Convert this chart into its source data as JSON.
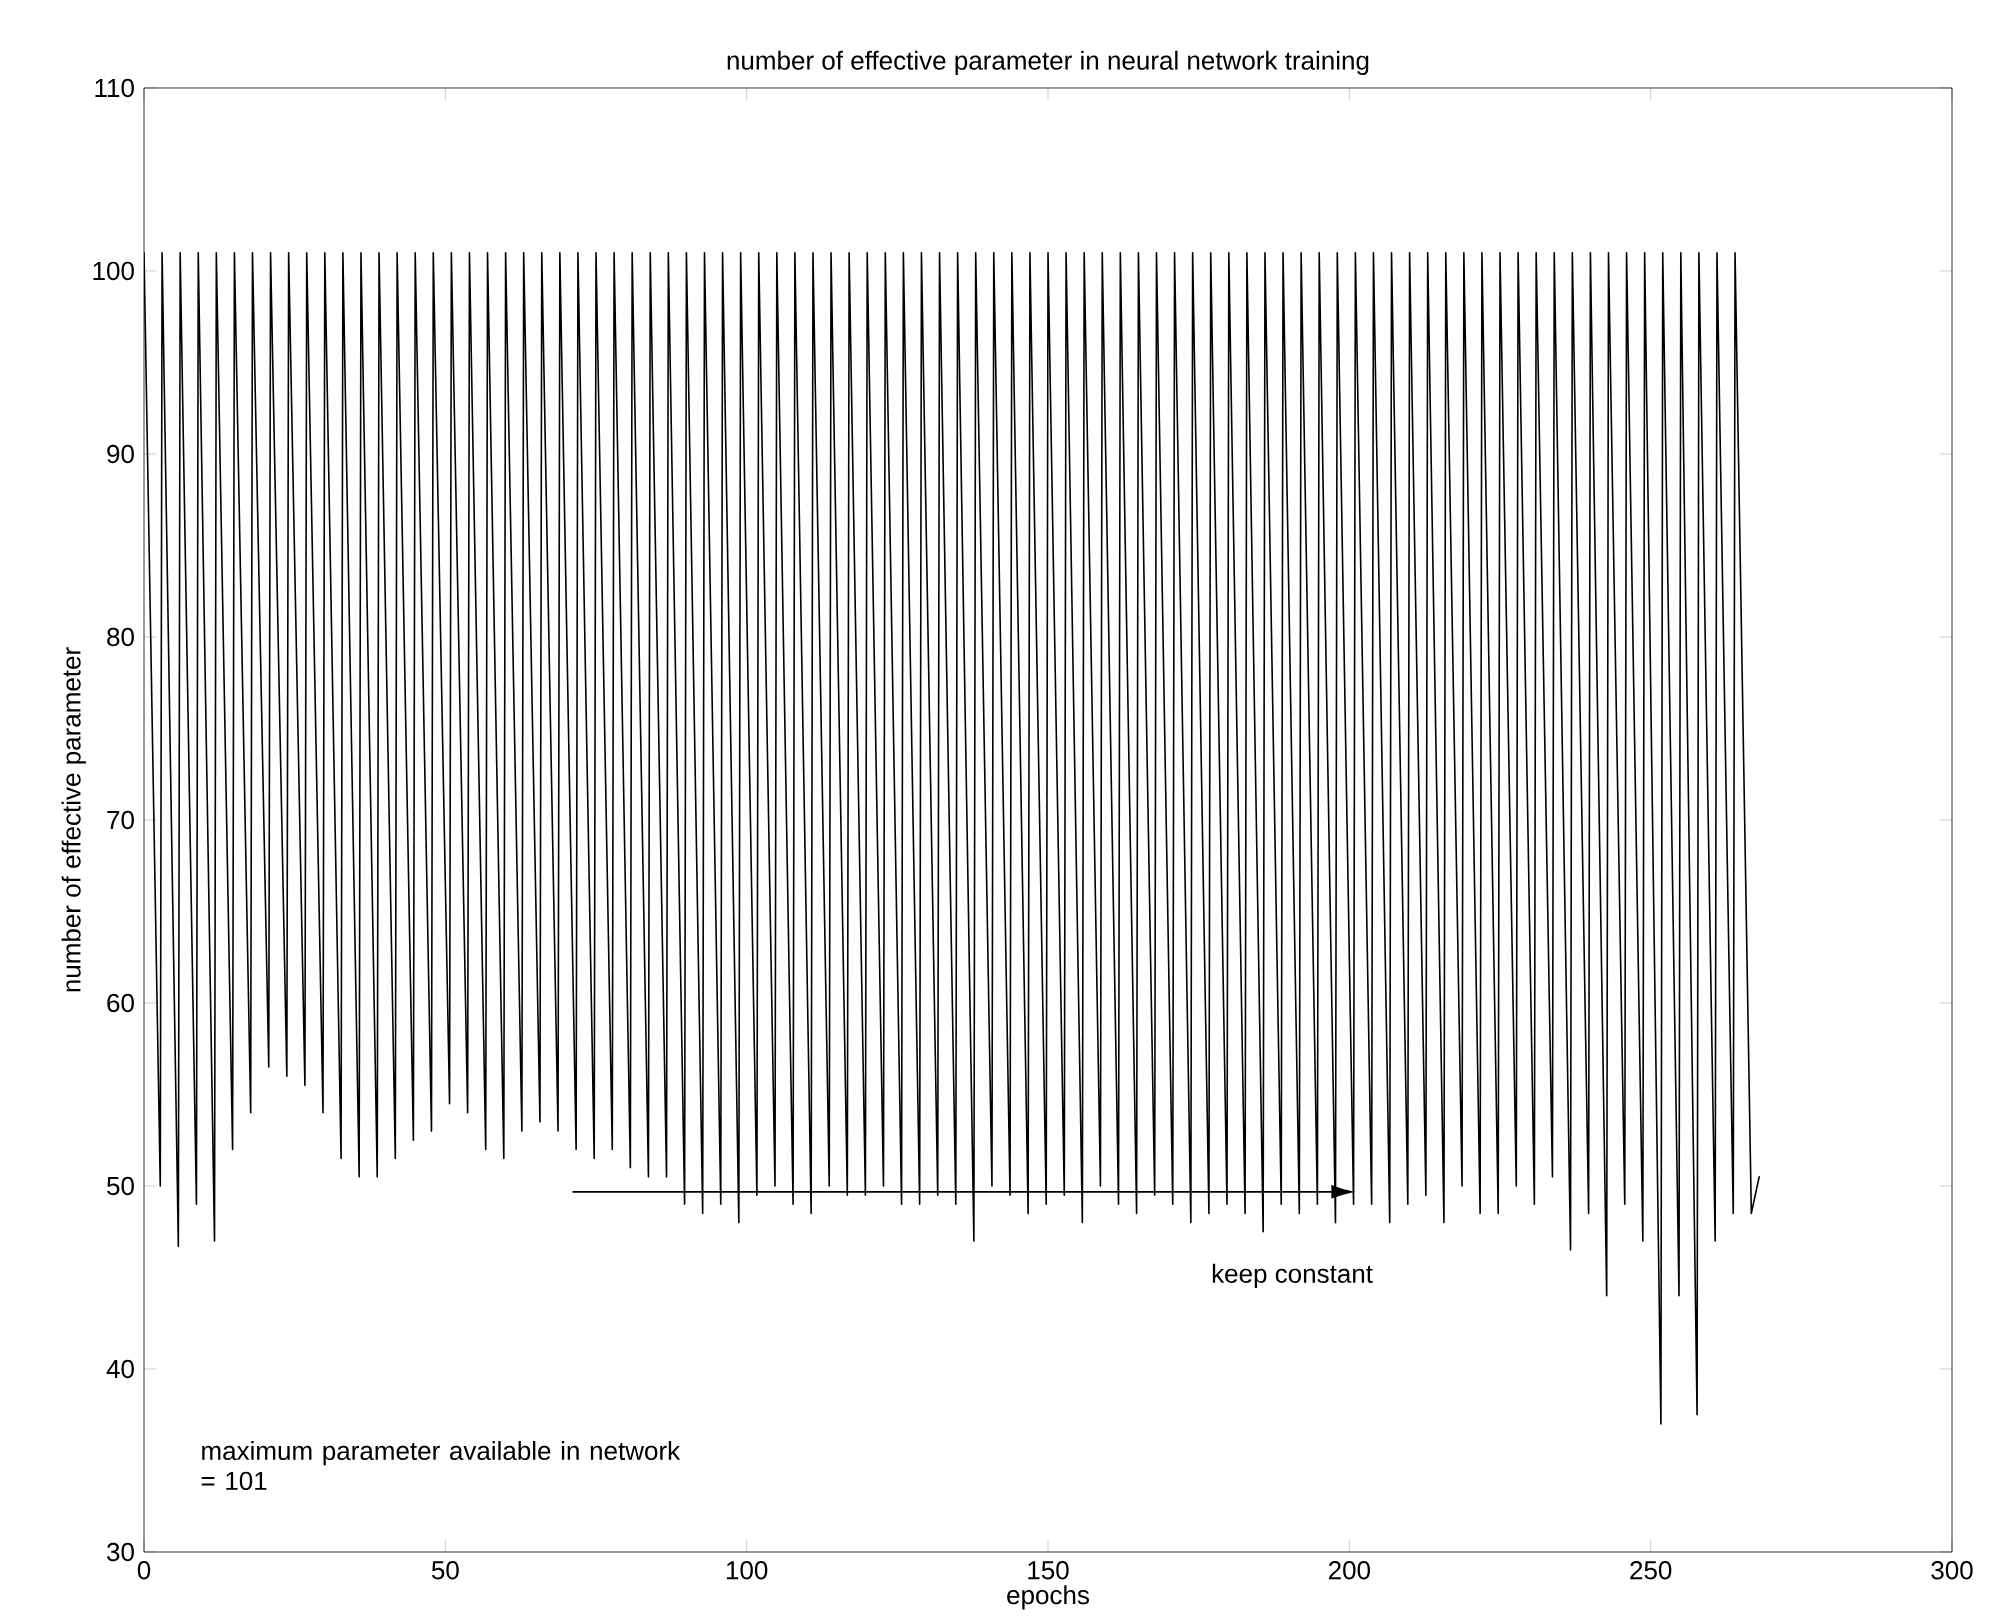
{
  "chart_data": {
    "type": "line",
    "title": "number of effective parameter in neural network training",
    "xlabel": "epochs",
    "ylabel": "number of effective parameter",
    "xlim": [
      0,
      300
    ],
    "ylim": [
      30,
      110
    ],
    "xticks": [
      0,
      50,
      100,
      150,
      200,
      250,
      300
    ],
    "yticks": [
      30,
      40,
      50,
      60,
      70,
      80,
      90,
      100,
      110
    ],
    "annotations": [
      "keep constant",
      "maximum parameter available in network = 101"
    ],
    "series": [
      {
        "color": "#000000",
        "x": [
          0,
          2.7,
          3,
          5.7,
          6,
          8.7,
          9,
          11.7,
          12,
          14.7,
          15,
          17.7,
          18,
          20.7,
          21,
          23.7,
          24,
          26.7,
          27,
          29.7,
          30,
          32.7,
          33,
          35.7,
          36,
          38.7,
          39,
          41.7,
          42,
          44.7,
          45,
          47.7,
          48,
          50.7,
          51,
          53.7,
          54,
          56.7,
          57,
          59.7,
          60,
          62.7,
          63,
          65.7,
          66,
          68.7,
          69,
          71.7,
          72,
          74.7,
          75,
          77.7,
          78,
          80.7,
          81,
          83.7,
          84,
          86.7,
          87,
          89.7,
          90,
          92.7,
          93,
          95.7,
          96,
          98.7,
          99,
          101.7,
          102,
          104.7,
          105,
          107.7,
          108,
          110.7,
          111,
          113.7,
          114,
          116.7,
          117,
          119.7,
          120,
          122.7,
          123,
          125.7,
          126,
          128.7,
          129,
          131.7,
          132,
          134.7,
          135,
          137.7,
          138,
          140.7,
          141,
          143.7,
          144,
          146.7,
          147,
          149.7,
          150,
          152.7,
          153,
          155.7,
          156,
          158.7,
          159,
          161.7,
          162,
          164.7,
          165,
          167.7,
          168,
          170.7,
          171,
          173.7,
          174,
          176.7,
          177,
          179.7,
          180,
          182.7,
          183,
          185.7,
          186,
          188.7,
          189,
          191.7,
          192,
          194.7,
          195,
          197.7,
          198,
          200.7,
          201,
          203.7,
          204,
          206.7,
          207,
          209.7,
          210,
          212.7,
          213,
          215.7,
          216,
          218.7,
          219,
          221.7,
          222,
          224.7,
          225,
          227.7,
          228,
          230.7,
          231,
          233.7,
          234,
          236.7,
          237,
          239.7,
          240,
          242.7,
          243,
          245.7,
          246,
          248.7,
          249,
          251.7,
          252,
          254.7,
          255,
          257.7,
          258,
          260.7,
          261,
          263.7,
          264,
          266.7,
          268
        ],
        "values": [
          101,
          50,
          101,
          46.7,
          101,
          49,
          101,
          47,
          101,
          52,
          101,
          54,
          101,
          56.5,
          101,
          56,
          101,
          55.5,
          101,
          54,
          101,
          51.5,
          101,
          50.5,
          101,
          50.5,
          101,
          51.5,
          101,
          52.5,
          101,
          53,
          101,
          54.5,
          101,
          54,
          101,
          52,
          101,
          51.5,
          101,
          53,
          101,
          53.5,
          101,
          53,
          101,
          52,
          101,
          51.5,
          101,
          52,
          101,
          51,
          101,
          50.5,
          101,
          50.5,
          101,
          49,
          101,
          48.5,
          101,
          49,
          101,
          48,
          101,
          49.5,
          101,
          50,
          101,
          49,
          101,
          48.5,
          101,
          50,
          101,
          49.5,
          101,
          49.5,
          101,
          50,
          101,
          49,
          101,
          49,
          101,
          49.5,
          101,
          49,
          101,
          47,
          101,
          50,
          101,
          49.5,
          101,
          48.5,
          101,
          49,
          101,
          49.5,
          101,
          48,
          101,
          50,
          101,
          49,
          101,
          48.5,
          101,
          49.5,
          101,
          49,
          101,
          48,
          101,
          48.5,
          101,
          49,
          101,
          48.5,
          101,
          47.5,
          101,
          49,
          101,
          48.5,
          101,
          49,
          101,
          48,
          101,
          49,
          101,
          49,
          101,
          48,
          101,
          49,
          101,
          49.5,
          101,
          48,
          101,
          50,
          101,
          48.5,
          101,
          48.5,
          101,
          50,
          101,
          49,
          101,
          50.5,
          101,
          46.5,
          101,
          48.5,
          101,
          44,
          101,
          49,
          101,
          47,
          101,
          37,
          101,
          44,
          101,
          37.5,
          101,
          47,
          101,
          48.5,
          101,
          48.5,
          50.5
        ]
      }
    ]
  }
}
